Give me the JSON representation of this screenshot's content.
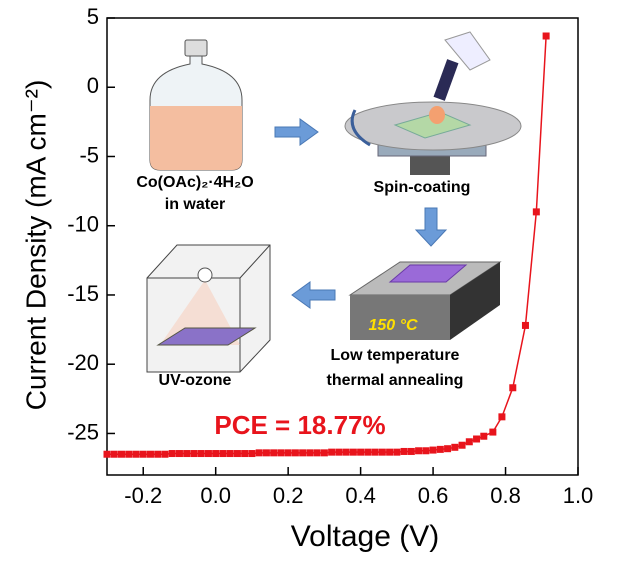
{
  "chart_data": {
    "type": "line",
    "xlabel": "Voltage (V)",
    "ylabel": "Current Density (mA cm⁻²)",
    "annotation": "PCE = 18.77%",
    "annotation_color": "#e8141c",
    "inset_labels": {
      "precursor": "Co(OAc)₂·4H₂O",
      "solvent": "in water",
      "spin": "Spin-coating",
      "temperature": "150 °C",
      "anneal_1": "Low temperature",
      "anneal_2": "thermal annealing",
      "uv": "UV-ozone"
    },
    "x": [
      -0.3,
      -0.28,
      -0.26,
      -0.24,
      -0.22,
      -0.2,
      -0.18,
      -0.16,
      -0.14,
      -0.12,
      -0.1,
      -0.08,
      -0.06,
      -0.04,
      -0.02,
      0,
      0.02,
      0.04,
      0.06,
      0.08,
      0.1,
      0.12,
      0.14,
      0.16,
      0.18,
      0.2,
      0.22,
      0.24,
      0.26,
      0.28,
      0.3,
      0.32,
      0.34,
      0.36,
      0.38,
      0.4,
      0.42,
      0.44,
      0.46,
      0.48,
      0.5,
      0.52,
      0.54,
      0.56,
      0.58,
      0.6,
      0.62,
      0.64,
      0.66,
      0.68,
      0.7,
      0.72,
      0.74,
      0.765,
      0.79,
      0.82,
      0.855,
      0.885,
      0.912
    ],
    "series": [
      {
        "color": "#e8141c",
        "values": [
          -26.5,
          -26.5,
          -26.5,
          -26.5,
          -26.5,
          -26.5,
          -26.5,
          -26.5,
          -26.5,
          -26.45,
          -26.45,
          -26.45,
          -26.45,
          -26.45,
          -26.45,
          -26.45,
          -26.45,
          -26.45,
          -26.45,
          -26.45,
          -26.45,
          -26.4,
          -26.4,
          -26.4,
          -26.4,
          -26.4,
          -26.4,
          -26.4,
          -26.4,
          -26.4,
          -26.4,
          -26.35,
          -26.35,
          -26.35,
          -26.35,
          -26.35,
          -26.35,
          -26.35,
          -26.35,
          -26.35,
          -26.35,
          -26.3,
          -26.3,
          -26.25,
          -26.25,
          -26.2,
          -26.15,
          -26.1,
          -26.0,
          -25.85,
          -25.6,
          -25.4,
          -25.2,
          -24.9,
          -23.8,
          -21.7,
          -17.2,
          -9.0,
          3.7
        ]
      }
    ],
    "xlim": [
      -0.3,
      1.0
    ],
    "xticks": [
      -0.2,
      {
        "value": 0,
        "label": "0.0"
      },
      0.2,
      0.4,
      0.6,
      0.8,
      {
        "value": 1,
        "label": "1.0"
      }
    ],
    "ylim": [
      -28,
      5
    ],
    "yticks": [
      5,
      0,
      -5,
      -10,
      -15,
      -20,
      -25
    ]
  }
}
